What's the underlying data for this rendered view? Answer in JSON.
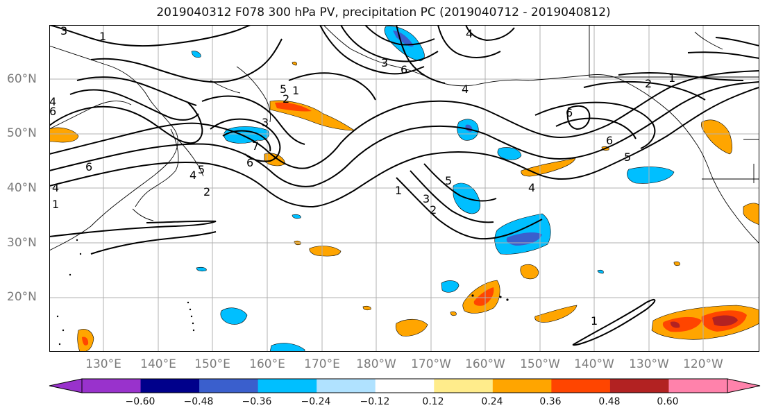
{
  "title": "2019040312 F078 300 hPa PV, precipitation PC (2019040712 - 2019040812)",
  "lat_labels": [
    "60°N",
    "50°N",
    "40°N",
    "30°N",
    "20°N"
  ],
  "lon_labels": [
    "130°E",
    "140°E",
    "150°E",
    "160°E",
    "170°E",
    "180°W",
    "170°W",
    "160°W",
    "150°W",
    "140°W",
    "130°W",
    "120°W"
  ],
  "colorbar": {
    "ticks": [
      "−0.60",
      "−0.48",
      "−0.36",
      "−0.24",
      "−0.12",
      "0.12",
      "0.24",
      "0.36",
      "0.48",
      "0.60"
    ],
    "colors": [
      "#9932cc",
      "#00008b",
      "#3a5fcd",
      "#00bfff",
      "#b0e2ff",
      "#ffffff",
      "#ffec8b",
      "#ffa500",
      "#ff4500",
      "#b22222",
      "#ff82ab"
    ]
  },
  "contour_labels": [
    "3",
    "1",
    "4",
    "3",
    "6",
    "4",
    "2",
    "1",
    "5",
    "2",
    "1",
    "6",
    "6",
    "5",
    "4",
    "3",
    "6",
    "7",
    "6",
    "5",
    "4",
    "2",
    "1",
    "3",
    "2",
    "5",
    "4",
    "1",
    "1",
    "6",
    "4"
  ]
}
